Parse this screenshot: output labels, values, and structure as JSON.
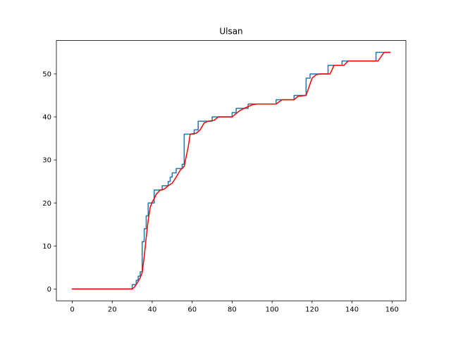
{
  "chart_data": {
    "type": "line",
    "title": "Ulsan",
    "xlabel": "",
    "ylabel": "",
    "xlim": [
      -7.95,
      166.95
    ],
    "ylim": [
      -2.75,
      57.75
    ],
    "grid": false,
    "legend": "none",
    "xticks": [
      0,
      20,
      40,
      60,
      80,
      100,
      120,
      140,
      160
    ],
    "yticks": [
      0,
      10,
      20,
      30,
      40,
      50
    ],
    "series": [
      {
        "color": "#1f77b4",
        "step": true,
        "points": [
          [
            0,
            0
          ],
          [
            29,
            0
          ],
          [
            30,
            1
          ],
          [
            31,
            1
          ],
          [
            32,
            2
          ],
          [
            33,
            3
          ],
          [
            34,
            4
          ],
          [
            35,
            11
          ],
          [
            36,
            14
          ],
          [
            37,
            17
          ],
          [
            38,
            20
          ],
          [
            40,
            20
          ],
          [
            41,
            23
          ],
          [
            45,
            24
          ],
          [
            48,
            25
          ],
          [
            49,
            26
          ],
          [
            50,
            27
          ],
          [
            51,
            27
          ],
          [
            52,
            28
          ],
          [
            54,
            28
          ],
          [
            55,
            29
          ],
          [
            56,
            36
          ],
          [
            61,
            37
          ],
          [
            63,
            39
          ],
          [
            70,
            40
          ],
          [
            80,
            41
          ],
          [
            82,
            42
          ],
          [
            88,
            43
          ],
          [
            102,
            44
          ],
          [
            111,
            45
          ],
          [
            117,
            49
          ],
          [
            119,
            50
          ],
          [
            128,
            52
          ],
          [
            135,
            53
          ],
          [
            152,
            55
          ],
          [
            159,
            55
          ]
        ]
      },
      {
        "color": "#ff0000",
        "step": false,
        "points": [
          [
            0,
            0
          ],
          [
            30,
            0
          ],
          [
            31,
            0.4
          ],
          [
            32,
            1
          ],
          [
            33,
            1.8
          ],
          [
            34,
            2.6
          ],
          [
            35,
            3.8
          ],
          [
            36,
            7.5
          ],
          [
            37,
            12
          ],
          [
            38,
            16
          ],
          [
            39,
            19
          ],
          [
            40,
            20.2
          ],
          [
            41,
            21
          ],
          [
            42,
            22
          ],
          [
            44,
            23
          ],
          [
            46,
            23.2
          ],
          [
            48,
            24
          ],
          [
            50,
            24.6
          ],
          [
            52,
            26
          ],
          [
            54,
            27.6
          ],
          [
            56,
            28.5
          ],
          [
            58,
            33
          ],
          [
            59,
            36
          ],
          [
            62,
            36.2
          ],
          [
            64,
            37
          ],
          [
            66,
            38.6
          ],
          [
            68,
            39
          ],
          [
            71,
            39.2
          ],
          [
            73,
            40
          ],
          [
            80,
            40
          ],
          [
            82,
            40.8
          ],
          [
            84,
            41.5
          ],
          [
            86,
            42
          ],
          [
            90,
            42.8
          ],
          [
            92,
            43
          ],
          [
            102,
            43
          ],
          [
            105,
            44
          ],
          [
            111,
            44
          ],
          [
            113,
            44.8
          ],
          [
            117,
            45
          ],
          [
            120,
            49
          ],
          [
            122,
            49.8
          ],
          [
            124,
            50
          ],
          [
            129,
            50
          ],
          [
            131,
            52
          ],
          [
            136,
            52
          ],
          [
            138,
            53
          ],
          [
            153,
            53
          ],
          [
            156,
            55
          ],
          [
            159,
            55
          ]
        ]
      }
    ]
  }
}
